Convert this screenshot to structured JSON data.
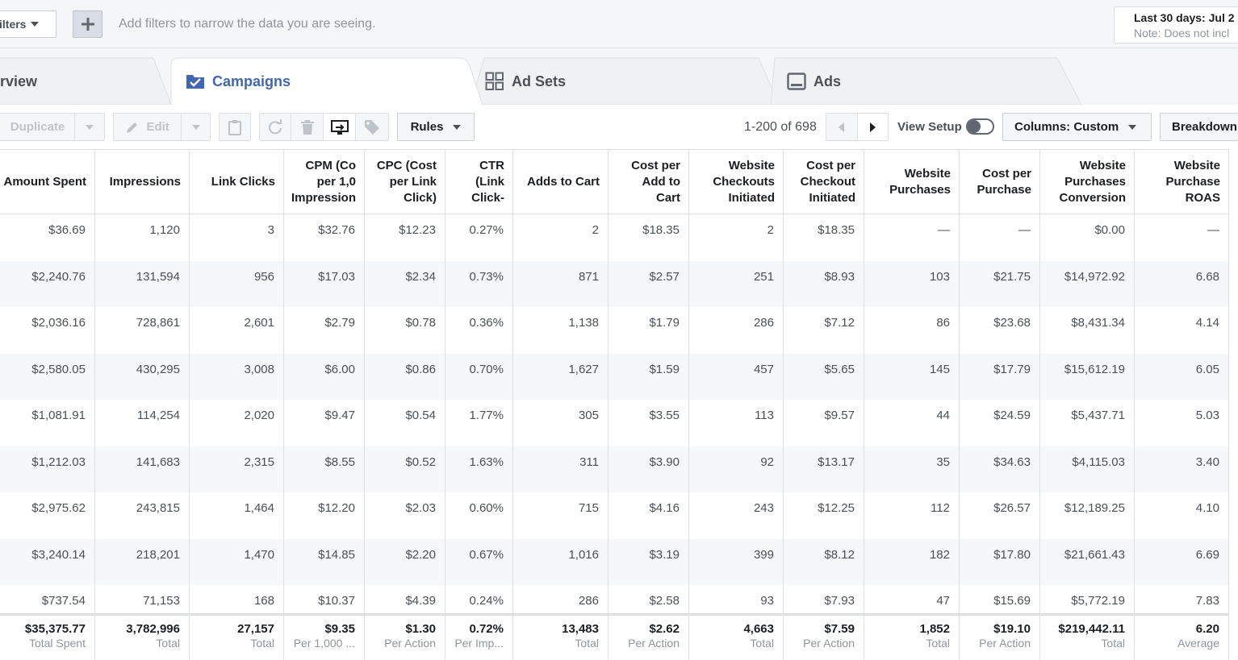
{
  "filterbar": {
    "filters_label": "ilters",
    "hint": "Add filters to narrow the data you are seeing.",
    "date_range": "Last 30 days: Jul 2",
    "date_note": "Note: Does not incl"
  },
  "tabs": [
    {
      "label": "rview",
      "icon": "overview-icon"
    },
    {
      "label": "Campaigns",
      "icon": "campaign-folder-check-icon",
      "active": true
    },
    {
      "label": "Ad Sets",
      "icon": "grid-icon"
    },
    {
      "label": "Ads",
      "icon": "ad-monitor-icon"
    }
  ],
  "toolbar": {
    "duplicate": "Duplicate",
    "edit": "Edit",
    "rules": "Rules",
    "pager": "1-200 of 698",
    "view_setup": "View Setup",
    "columns": "Columns: Custom",
    "breakdown": "Breakdown"
  },
  "table": {
    "headers": [
      "Amount Spent",
      "Impressions",
      "Link Clicks",
      "CPM (Co\nper 1,0\nImpression",
      "CPC (Cost\nper Link\nClick)",
      "CTR\n(Link\nClick-",
      "Adds to Cart",
      "Cost per\nAdd to\nCart",
      "Website\nCheckouts\nInitiated",
      "Cost per\nCheckout\nInitiated",
      "Website\nPurchases",
      "Cost per\nPurchase",
      "Website\nPurchases\nConversion",
      "Website\nPurchase\nROAS"
    ],
    "rows": [
      [
        "$36.69",
        "1,120",
        "3",
        "$32.76",
        "$12.23",
        "0.27%",
        "2",
        "$18.35",
        "2",
        "$18.35",
        "—",
        "—",
        "$0.00",
        "—"
      ],
      [
        "$2,240.76",
        "131,594",
        "956",
        "$17.03",
        "$2.34",
        "0.73%",
        "871",
        "$2.57",
        "251",
        "$8.93",
        "103",
        "$21.75",
        "$14,972.92",
        "6.68"
      ],
      [
        "$2,036.16",
        "728,861",
        "2,601",
        "$2.79",
        "$0.78",
        "0.36%",
        "1,138",
        "$1.79",
        "286",
        "$7.12",
        "86",
        "$23.68",
        "$8,431.34",
        "4.14"
      ],
      [
        "$2,580.05",
        "430,295",
        "3,008",
        "$6.00",
        "$0.86",
        "0.70%",
        "1,627",
        "$1.59",
        "457",
        "$5.65",
        "145",
        "$17.79",
        "$15,612.19",
        "6.05"
      ],
      [
        "$1,081.91",
        "114,254",
        "2,020",
        "$9.47",
        "$0.54",
        "1.77%",
        "305",
        "$3.55",
        "113",
        "$9.57",
        "44",
        "$24.59",
        "$5,437.71",
        "5.03"
      ],
      [
        "$1,212.03",
        "141,683",
        "2,315",
        "$8.55",
        "$0.52",
        "1.63%",
        "311",
        "$3.90",
        "92",
        "$13.17",
        "35",
        "$34.63",
        "$4,115.03",
        "3.40"
      ],
      [
        "$2,975.62",
        "243,815",
        "1,464",
        "$12.20",
        "$2.03",
        "0.60%",
        "715",
        "$4.16",
        "243",
        "$12.25",
        "112",
        "$26.57",
        "$12,189.25",
        "4.10"
      ],
      [
        "$3,240.14",
        "218,201",
        "1,470",
        "$14.85",
        "$2.20",
        "0.67%",
        "1,016",
        "$3.19",
        "399",
        "$8.12",
        "182",
        "$17.80",
        "$21,661.43",
        "6.69"
      ],
      [
        "$737.54",
        "71,153",
        "168",
        "$10.37",
        "$4.39",
        "0.24%",
        "286",
        "$2.58",
        "93",
        "$7.93",
        "47",
        "$15.69",
        "$5,772.19",
        "7.83"
      ]
    ],
    "totals": [
      {
        "value": "$35,375.77",
        "label": "Total Spent"
      },
      {
        "value": "3,782,996",
        "label": "Total"
      },
      {
        "value": "27,157",
        "label": "Total"
      },
      {
        "value": "$9.35",
        "label": "Per 1,000 ..."
      },
      {
        "value": "$1.30",
        "label": "Per Action"
      },
      {
        "value": "0.72%",
        "label": "Per Imp..."
      },
      {
        "value": "13,483",
        "label": "Total"
      },
      {
        "value": "$2.62",
        "label": "Per Action"
      },
      {
        "value": "4,663",
        "label": "Total"
      },
      {
        "value": "$7.59",
        "label": "Per Action"
      },
      {
        "value": "1,852",
        "label": "Total"
      },
      {
        "value": "$19.10",
        "label": "Per Action"
      },
      {
        "value": "$219,442.11",
        "label": "Total"
      },
      {
        "value": "6.20",
        "label": "Average"
      }
    ]
  },
  "colors": {
    "accent": "#4267b2",
    "border": "#dddfe2",
    "muted_text": "#90949c",
    "alt_row": "#f6f7f9"
  }
}
